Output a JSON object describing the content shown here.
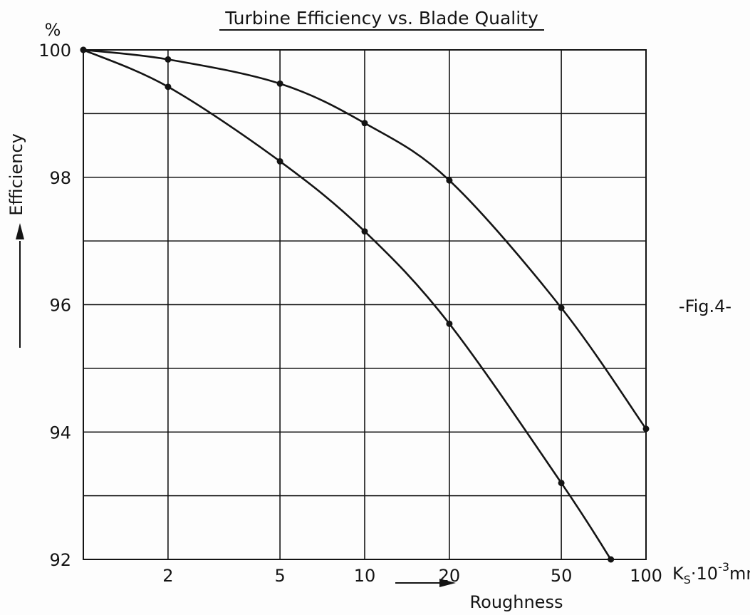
{
  "chart_data": {
    "type": "line",
    "title": "Turbine Efficiency vs. Blade Quality",
    "ylabel": "Efficiency",
    "y_unit": "%",
    "xlabel": "Roughness",
    "x_unit_prefix": "K",
    "x_unit_sub": "S",
    "x_unit_mid": "·10",
    "x_unit_exp": "-3",
    "x_unit_tail": "mm",
    "x_scale": "log",
    "xlim": [
      1,
      100
    ],
    "ylim": [
      92,
      100
    ],
    "x_ticks": [
      2,
      5,
      10,
      20,
      50,
      100
    ],
    "x_tick_labels": [
      "2",
      "5",
      "10",
      "20",
      "50",
      "100"
    ],
    "y_ticks": [
      92,
      94,
      96,
      98,
      100
    ],
    "y_tick_labels": [
      "92",
      "94",
      "96",
      "98",
      "100"
    ],
    "grid": true,
    "annotation": "-Fig.4-",
    "series": [
      {
        "x": [
          1,
          2,
          5,
          10,
          20,
          50,
          100
        ],
        "y": [
          100,
          99.85,
          99.47,
          98.85,
          97.95,
          95.95,
          94.05
        ]
      },
      {
        "x": [
          1,
          2,
          5,
          10,
          20,
          50,
          75
        ],
        "y": [
          100,
          99.42,
          98.25,
          97.15,
          95.7,
          93.2,
          92.0
        ]
      }
    ],
    "colors": {
      "ink": "#141414"
    }
  }
}
